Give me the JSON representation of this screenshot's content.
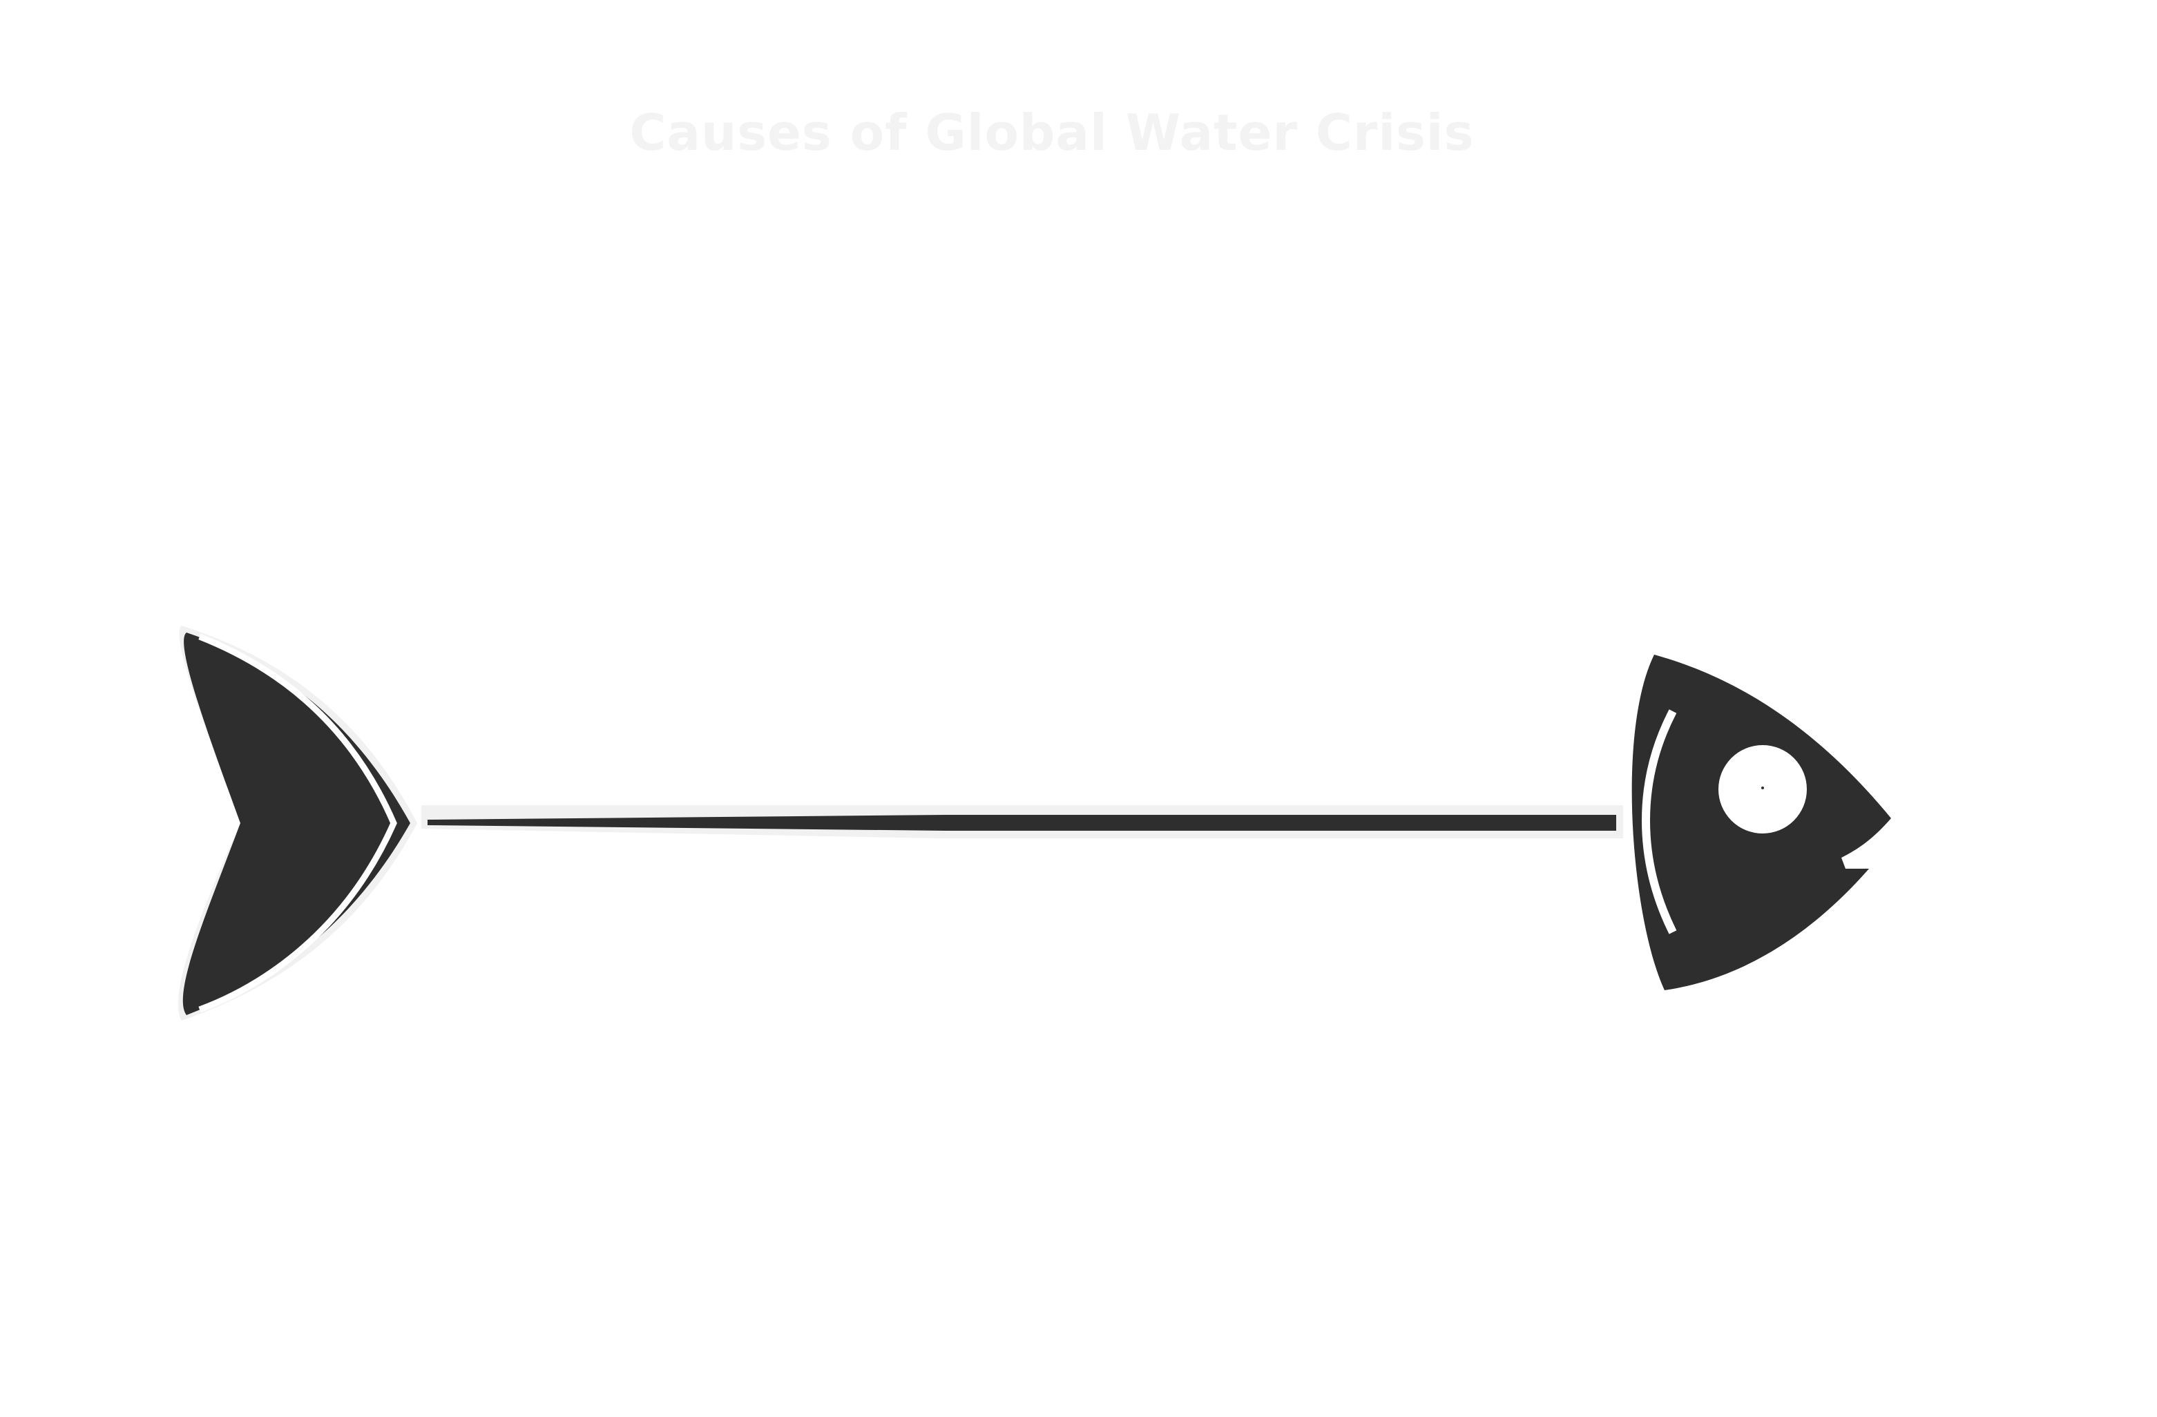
{
  "diagram": {
    "title": "Causes of Global Water Crisis"
  },
  "icons": {
    "tail": "fish-tail-icon",
    "head": "fish-head-icon",
    "eye": "fish-eye-icon",
    "spine": "fish-spine"
  },
  "colors": {
    "fish_body": "#2e2e2e",
    "outline": "#f1f1f1",
    "title": "#f3f3f3",
    "background": "#ffffff"
  }
}
